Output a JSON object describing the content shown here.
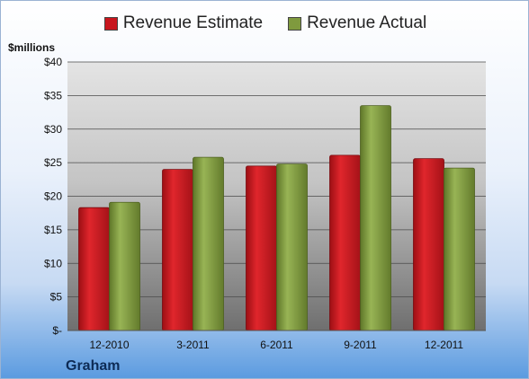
{
  "chart_data": {
    "type": "bar",
    "categories": [
      "12-2010",
      "3-2011",
      "6-2011",
      "9-2011",
      "12-2011"
    ],
    "series": [
      {
        "name": "Revenue Estimate",
        "values": [
          18.3,
          24.0,
          24.5,
          26.1,
          25.6
        ],
        "color": "#c8161d"
      },
      {
        "name": "Revenue Actual",
        "values": [
          19.1,
          25.8,
          24.8,
          33.5,
          24.2
        ],
        "color": "#7f9a3e"
      }
    ],
    "yticks": [
      "$-",
      "$5",
      "$10",
      "$15",
      "$20",
      "$25",
      "$30",
      "$35",
      "$40"
    ],
    "ylim": [
      0,
      40
    ],
    "ylabel": "$millions",
    "title": "Graham",
    "grid": true,
    "legend": "top-center"
  }
}
